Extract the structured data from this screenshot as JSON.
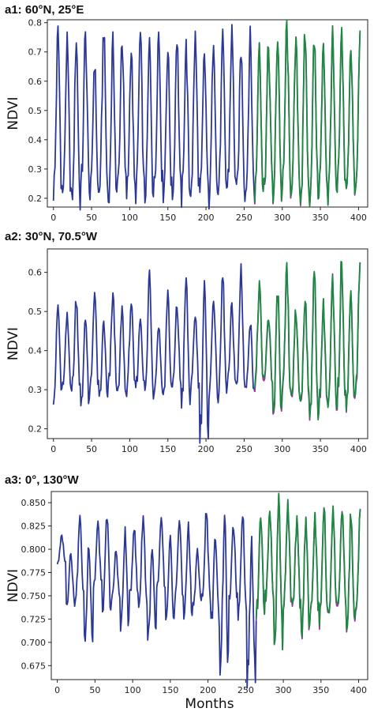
{
  "chart_data": [
    {
      "type": "line",
      "title": "a1: 60°N, 25°E",
      "ylabel": "NDVI",
      "xlabel": "",
      "xlim": [
        -8,
        412
      ],
      "ylim": [
        0.17,
        0.81
      ],
      "xticks": [
        0,
        50,
        100,
        150,
        200,
        250,
        300,
        350,
        400
      ],
      "yticks": [
        0.2,
        0.3,
        0.4,
        0.5,
        0.6,
        0.7,
        0.8
      ],
      "ytick_labels": [
        "0.2",
        "0.3",
        "0.4",
        "0.5",
        "0.6",
        "0.7",
        "0.8"
      ],
      "observed_range": [
        0,
        402
      ],
      "predicted_range": [
        264,
        402
      ],
      "low": [
        0.22,
        0.21,
        0.18,
        0.24,
        0.2,
        0.22,
        0.19,
        0.24,
        0.21,
        0.22,
        0.2,
        0.24,
        0.22,
        0.21,
        0.2,
        0.23,
        0.21,
        0.2,
        0.22,
        0.24,
        0.21,
        0.22,
        0.21,
        0.24,
        0.2,
        0.22,
        0.24,
        0.19,
        0.21,
        0.23,
        0.2,
        0.22,
        0.22,
        0.21
      ],
      "high": [
        0.78,
        0.74,
        0.76,
        0.77,
        0.68,
        0.79,
        0.74,
        0.76,
        0.72,
        0.77,
        0.74,
        0.78,
        0.72,
        0.77,
        0.73,
        0.76,
        0.7,
        0.77,
        0.75,
        0.78,
        0.72,
        0.76,
        0.75,
        0.73,
        0.77,
        0.8,
        0.74,
        0.77,
        0.75,
        0.72,
        0.76,
        0.77,
        0.74,
        0.76
      ],
      "pred_bias": 0.012,
      "color": "#2b3896",
      "accent": "#a133a8",
      "trend": "#1a8a3f"
    },
    {
      "type": "line",
      "title": "a2: 30°N, 70.5°W",
      "ylabel": "NDVI",
      "xlabel": "",
      "xlim": [
        -8,
        412
      ],
      "ylim": [
        0.175,
        0.66
      ],
      "xticks": [
        0,
        50,
        100,
        150,
        200,
        250,
        300,
        350,
        400
      ],
      "yticks": [
        0.2,
        0.3,
        0.4,
        0.5,
        0.6
      ],
      "ytick_labels": [
        "0.2",
        "0.3",
        "0.4",
        "0.5",
        "0.6"
      ],
      "observed_range": [
        0,
        402
      ],
      "predicted_range": [
        264,
        402
      ],
      "low": [
        0.28,
        0.31,
        0.3,
        0.25,
        0.3,
        0.27,
        0.31,
        0.28,
        0.3,
        0.31,
        0.29,
        0.3,
        0.28,
        0.31,
        0.27,
        0.3,
        0.19,
        0.29,
        0.28,
        0.31,
        0.3,
        0.3,
        0.31,
        0.32,
        0.22,
        0.27,
        0.28,
        0.26,
        0.24,
        0.26,
        0.25,
        0.27,
        0.26,
        0.3
      ],
      "high": [
        0.52,
        0.49,
        0.54,
        0.5,
        0.56,
        0.48,
        0.55,
        0.51,
        0.53,
        0.49,
        0.61,
        0.47,
        0.56,
        0.52,
        0.59,
        0.5,
        0.57,
        0.55,
        0.6,
        0.52,
        0.62,
        0.48,
        0.57,
        0.49,
        0.56,
        0.61,
        0.5,
        0.55,
        0.6,
        0.52,
        0.58,
        0.63,
        0.55,
        0.64
      ],
      "pred_bias": 0.02,
      "color": "#2b3896",
      "accent": "#a133a8",
      "trend": "#1a8a3f"
    },
    {
      "type": "line",
      "title": "a3: 0°, 130°W",
      "ylabel": "NDVI",
      "xlabel": "Months",
      "xlim": [
        -8,
        412
      ],
      "ylim": [
        0.66,
        0.862
      ],
      "xticks": [
        0,
        50,
        100,
        150,
        200,
        250,
        300,
        350,
        400
      ],
      "yticks": [
        0.675,
        0.7,
        0.725,
        0.75,
        0.775,
        0.8,
        0.825,
        0.85
      ],
      "ytick_labels": [
        "0.675",
        "0.700",
        "0.725",
        "0.750",
        "0.775",
        "0.800",
        "0.825",
        "0.850"
      ],
      "observed_range": [
        0,
        402
      ],
      "predicted_range": [
        264,
        402
      ],
      "low": [
        0.785,
        0.74,
        0.75,
        0.7,
        0.76,
        0.735,
        0.745,
        0.715,
        0.75,
        0.74,
        0.705,
        0.755,
        0.72,
        0.745,
        0.73,
        0.74,
        0.75,
        0.72,
        0.674,
        0.745,
        0.73,
        0.662,
        0.73,
        0.745,
        0.7,
        0.74,
        0.735,
        0.705,
        0.73,
        0.72,
        0.73,
        0.74,
        0.71,
        0.73
      ],
      "high": [
        0.815,
        0.8,
        0.835,
        0.81,
        0.828,
        0.837,
        0.8,
        0.82,
        0.826,
        0.838,
        0.8,
        0.832,
        0.81,
        0.835,
        0.826,
        0.8,
        0.842,
        0.817,
        0.836,
        0.827,
        0.845,
        0.81,
        0.84,
        0.845,
        0.858,
        0.845,
        0.83,
        0.84,
        0.835,
        0.85,
        0.845,
        0.84,
        0.84,
        0.84
      ],
      "pred_bias": 0.006,
      "color": "#2b3896",
      "accent": "#a133a8",
      "trend": "#1a8a3f"
    }
  ]
}
